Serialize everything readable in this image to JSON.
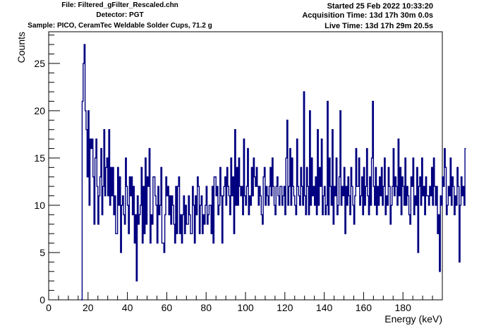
{
  "header": {
    "file": "File: Filtered_gFilter_Rescaled.chn",
    "detector": "Detector: PGT",
    "sample": "Sample: PICO, CeramTec Weldable Solder Cups, 71.2 g",
    "started": "Started 25 Feb 2022 10:33:20",
    "acquisition": "Acquisition Time: 13d 17h 30m 0.0s",
    "live": "Live Time: 13d 17h 29m 20.5s"
  },
  "colors": {
    "series": "#000080",
    "axis": "#000000"
  },
  "chart_data": {
    "type": "line",
    "style": "step-histogram",
    "xlabel": "Energy (keV)",
    "ylabel": "Counts",
    "xlim": [
      0,
      200
    ],
    "ylim": [
      0,
      28.35
    ],
    "xticks": [
      0,
      20,
      40,
      60,
      80,
      100,
      120,
      140,
      160,
      180
    ],
    "yticks": [
      0,
      5,
      10,
      15,
      20,
      25
    ],
    "grid": false,
    "bin_width": 0.5,
    "x_start": 16.5,
    "y": [
      0,
      21,
      25,
      27,
      20,
      18,
      13,
      20,
      10,
      17,
      16,
      17,
      13,
      8,
      15,
      17,
      12,
      8,
      11,
      13,
      16,
      9,
      12,
      18,
      11,
      14,
      15,
      11,
      18,
      10,
      14,
      11,
      14,
      9,
      11,
      7,
      7,
      14,
      10,
      13,
      5,
      10,
      11,
      9,
      8,
      15,
      12,
      10,
      7,
      13,
      11,
      13,
      9,
      12,
      6,
      9,
      2,
      11,
      8,
      9,
      10,
      14,
      6,
      12,
      7,
      15,
      8,
      13,
      12,
      16,
      6,
      9,
      8,
      13,
      13,
      11,
      10,
      6,
      12,
      9,
      10,
      14,
      6,
      6,
      5,
      9,
      13,
      11,
      12,
      9,
      11,
      8,
      11,
      10,
      8,
      6,
      12,
      7,
      12,
      13,
      7,
      9,
      6,
      9,
      11,
      7,
      10,
      8,
      8,
      11,
      9,
      7,
      7,
      12,
      10,
      6,
      11,
      9,
      13,
      12,
      7,
      10,
      11,
      7,
      9,
      8,
      10,
      12,
      8,
      9,
      10,
      10,
      7,
      12,
      6,
      13,
      13,
      11,
      12,
      9,
      10,
      14,
      11,
      6,
      11,
      12,
      13,
      10,
      14,
      12,
      11,
      9,
      15,
      11,
      13,
      7,
      18,
      10,
      14,
      10,
      15,
      12,
      11,
      12,
      9,
      17,
      11,
      10,
      12,
      16,
      9,
      11,
      10,
      14,
      11,
      15,
      13,
      12,
      14,
      12,
      10,
      12,
      11,
      9,
      8,
      13,
      14,
      10,
      12,
      11,
      10,
      12,
      14,
      11,
      15,
      12,
      10,
      9,
      12,
      13,
      11,
      10,
      12,
      12,
      10,
      11,
      12,
      9,
      15,
      19,
      10,
      12,
      16,
      10,
      15,
      12,
      11,
      10,
      9,
      17,
      12,
      11,
      10,
      14,
      12,
      10,
      22,
      11,
      9,
      14,
      12,
      9,
      20,
      10,
      15,
      11,
      12,
      10,
      13,
      9,
      18,
      10,
      14,
      12,
      17,
      9,
      11,
      12,
      9,
      10,
      21,
      9,
      15,
      12,
      10,
      18,
      8,
      12,
      11,
      15,
      9,
      10,
      13,
      20,
      10,
      12,
      11,
      14,
      7,
      12,
      10,
      13,
      11,
      9,
      14,
      12,
      10,
      8,
      11,
      16,
      12,
      12,
      15,
      10,
      11,
      13,
      9,
      14,
      10,
      12,
      16,
      11,
      9,
      13,
      10,
      15,
      21,
      12,
      10,
      14,
      9,
      12,
      10,
      13,
      11,
      14,
      10,
      12,
      15,
      9,
      11,
      10,
      14,
      12,
      8,
      10,
      12,
      16,
      11,
      13,
      12,
      10,
      17,
      11,
      14,
      9,
      13,
      12,
      10,
      15,
      10,
      12,
      11,
      9,
      8,
      13,
      12,
      15,
      9,
      11,
      10,
      14,
      5,
      12,
      13,
      10,
      15,
      11,
      12,
      9,
      13,
      11,
      11,
      10,
      12,
      11,
      14,
      10,
      15,
      12,
      10,
      12,
      7,
      9,
      3,
      11,
      10,
      13,
      12,
      16,
      14,
      9,
      10,
      12,
      11,
      15,
      10,
      13,
      12,
      9,
      11,
      10,
      14,
      12,
      4,
      10,
      13,
      11,
      12,
      10,
      16
    ]
  }
}
